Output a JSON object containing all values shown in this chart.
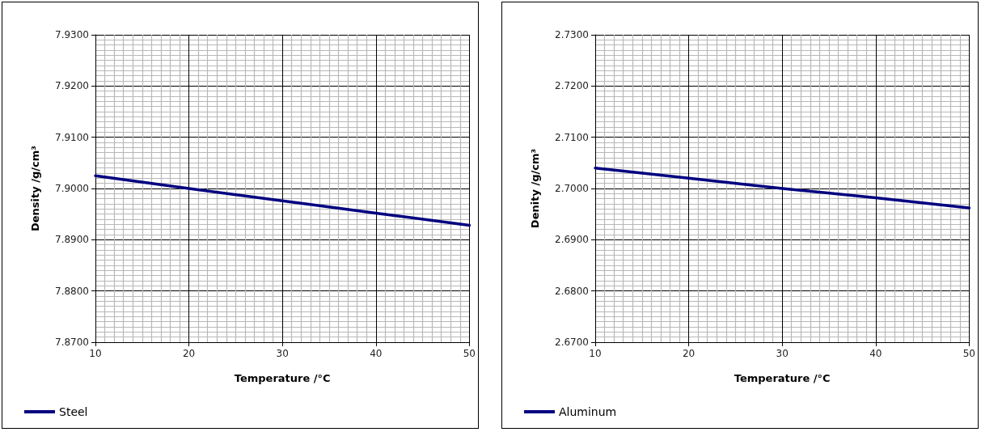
{
  "chart_data": [
    {
      "type": "line",
      "xlabel": "Temperature /°C",
      "ylabel": "Density /g/cm³",
      "x": [
        10,
        20,
        30,
        40,
        50
      ],
      "series": [
        {
          "name": "Steel",
          "color": "#000080",
          "values": [
            7.9025,
            7.9,
            7.8976,
            7.8952,
            7.8928
          ]
        }
      ],
      "xlim": [
        10,
        50
      ],
      "xticks": [
        10,
        20,
        30,
        40,
        50
      ],
      "ylim": [
        7.87,
        7.93
      ],
      "yticks": [
        {
          "value": 7.87,
          "label": "7.8700"
        },
        {
          "value": 7.88,
          "label": "7.8800"
        },
        {
          "value": 7.89,
          "label": "7.8900"
        },
        {
          "value": 7.9,
          "label": "7.9000"
        },
        {
          "value": 7.91,
          "label": "7.9100"
        },
        {
          "value": 7.92,
          "label": "7.9200"
        },
        {
          "value": 7.93,
          "label": "7.9300"
        }
      ],
      "grid": true,
      "legend": "bottom left",
      "marker": "none",
      "line_style": "solid"
    },
    {
      "type": "line",
      "xlabel": "Temperature /°C",
      "ylabel": "Denity /g/cm³",
      "x": [
        10,
        20,
        30,
        40,
        50
      ],
      "series": [
        {
          "name": "Aluminum",
          "color": "#000080",
          "values": [
            2.704,
            2.702,
            2.7,
            2.6982,
            2.6962
          ]
        }
      ],
      "xlim": [
        10,
        50
      ],
      "xticks": [
        10,
        20,
        30,
        40,
        50
      ],
      "ylim": [
        2.67,
        2.73
      ],
      "yticks": [
        {
          "value": 2.67,
          "label": "2.6700"
        },
        {
          "value": 2.68,
          "label": "2.6800"
        },
        {
          "value": 2.69,
          "label": "2.6900"
        },
        {
          "value": 2.7,
          "label": "2.7000"
        },
        {
          "value": 2.71,
          "label": "2.7100"
        },
        {
          "value": 2.72,
          "label": "2.7200"
        },
        {
          "value": 2.73,
          "label": "2.7300"
        }
      ],
      "grid": true,
      "legend": "bottom left",
      "marker": "none",
      "line_style": "solid"
    }
  ]
}
